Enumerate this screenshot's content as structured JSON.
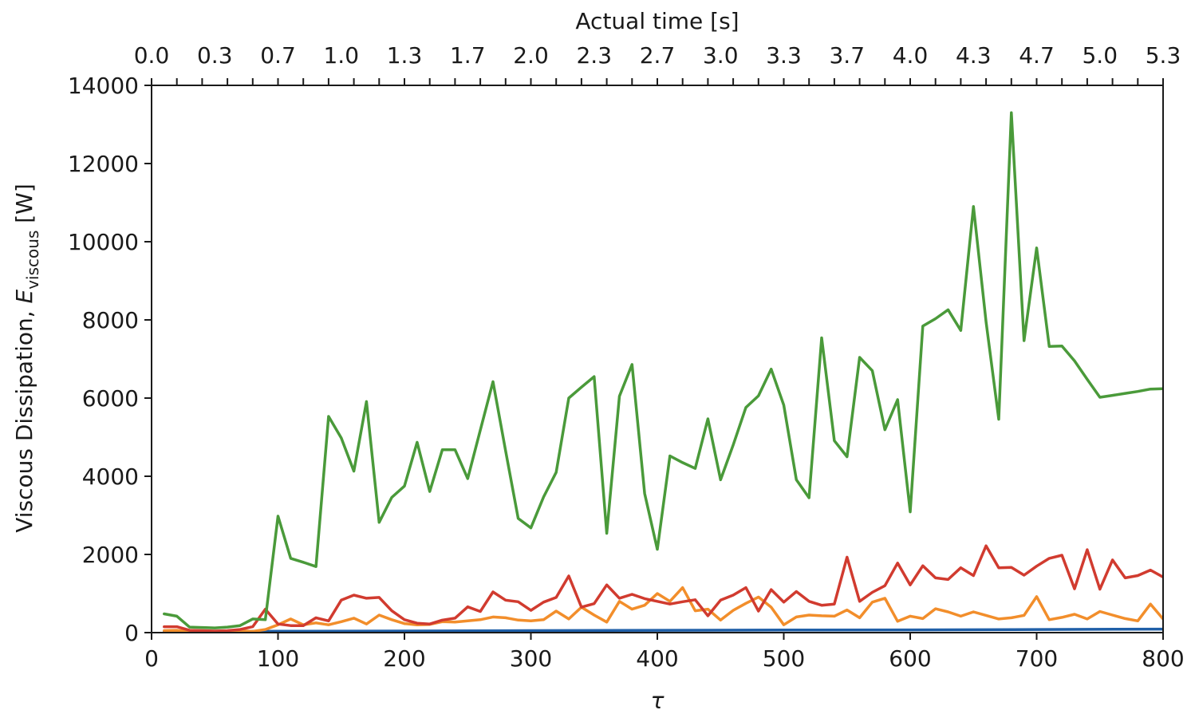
{
  "chart_data": {
    "type": "line",
    "xlabel": "τ",
    "ylabel": "Viscous Dissipation, E_viscous [W]",
    "ylabel_parts": {
      "pre": "Viscous Dissipation, ",
      "var": "E",
      "sub": "viscous",
      "post": " [W]"
    },
    "top_xlabel": "Actual time [s]",
    "xlim": [
      0,
      800
    ],
    "ylim": [
      0,
      14000
    ],
    "grid": false,
    "x_ticks": [
      0,
      100,
      200,
      300,
      400,
      500,
      600,
      700,
      800
    ],
    "y_ticks": [
      0,
      2000,
      4000,
      6000,
      8000,
      10000,
      12000,
      14000
    ],
    "top_ticks": {
      "positions": [
        0,
        20,
        40,
        60,
        80,
        100,
        120,
        140,
        160,
        180,
        200,
        220,
        240,
        260,
        280,
        300,
        320,
        340,
        360,
        380,
        400,
        420,
        440,
        460,
        480,
        500,
        520,
        540,
        560,
        580,
        600,
        620,
        640,
        660,
        680,
        700,
        720,
        740,
        760,
        780,
        800
      ],
      "labels": [
        {
          "x": 0,
          "text": "0.0"
        },
        {
          "x": 50,
          "text": "0.3"
        },
        {
          "x": 100,
          "text": "0.7"
        },
        {
          "x": 150,
          "text": "1.0"
        },
        {
          "x": 200,
          "text": "1.3"
        },
        {
          "x": 250,
          "text": "1.7"
        },
        {
          "x": 300,
          "text": "2.0"
        },
        {
          "x": 350,
          "text": "2.3"
        },
        {
          "x": 400,
          "text": "2.7"
        },
        {
          "x": 450,
          "text": "3.0"
        },
        {
          "x": 500,
          "text": "3.3"
        },
        {
          "x": 550,
          "text": "3.7"
        },
        {
          "x": 600,
          "text": "4.0"
        },
        {
          "x": 650,
          "text": "4.3"
        },
        {
          "x": 700,
          "text": "4.7"
        },
        {
          "x": 750,
          "text": "5.0"
        },
        {
          "x": 800,
          "text": "5.3"
        }
      ]
    },
    "series": [
      {
        "color": "#1f5fa8",
        "x": [
          10,
          50,
          100,
          200,
          300,
          400,
          500,
          600,
          700,
          800
        ],
        "y": [
          20,
          25,
          35,
          40,
          50,
          60,
          65,
          70,
          80,
          90
        ]
      },
      {
        "color": "#f28e2b",
        "x": [
          10,
          20,
          30,
          40,
          50,
          60,
          70,
          80,
          90,
          100,
          110,
          120,
          130,
          140,
          150,
          160,
          170,
          180,
          190,
          200,
          210,
          220,
          230,
          240,
          250,
          260,
          270,
          280,
          290,
          300,
          310,
          320,
          330,
          340,
          350,
          360,
          370,
          380,
          390,
          400,
          410,
          420,
          430,
          440,
          450,
          460,
          470,
          480,
          490,
          500,
          510,
          520,
          530,
          540,
          550,
          560,
          570,
          580,
          590,
          600,
          610,
          620,
          630,
          640,
          650,
          660,
          670,
          680,
          690,
          700,
          710,
          720,
          730,
          740,
          750,
          760,
          770,
          780,
          790,
          800
        ],
        "y": [
          50,
          60,
          20,
          20,
          30,
          40,
          50,
          30,
          80,
          200,
          350,
          200,
          250,
          200,
          280,
          370,
          220,
          450,
          330,
          230,
          200,
          210,
          280,
          270,
          300,
          330,
          400,
          380,
          320,
          300,
          330,
          550,
          350,
          650,
          450,
          270,
          800,
          600,
          700,
          1000,
          800,
          1150,
          560,
          600,
          320,
          570,
          750,
          910,
          650,
          200,
          400,
          450,
          430,
          420,
          580,
          380,
          780,
          880,
          290,
          420,
          360,
          610,
          530,
          420,
          530,
          440,
          350,
          380,
          440,
          920,
          330,
          390,
          470,
          350,
          540,
          450,
          360,
          300,
          730,
          350
        ]
      },
      {
        "color": "#d13b2f",
        "x": [
          10,
          20,
          30,
          40,
          50,
          60,
          70,
          80,
          90,
          100,
          110,
          120,
          130,
          140,
          150,
          160,
          170,
          180,
          190,
          200,
          210,
          220,
          230,
          240,
          250,
          260,
          270,
          280,
          290,
          300,
          310,
          320,
          330,
          340,
          350,
          360,
          370,
          380,
          390,
          400,
          410,
          420,
          430,
          440,
          450,
          460,
          470,
          480,
          490,
          500,
          510,
          520,
          530,
          540,
          550,
          560,
          570,
          580,
          590,
          600,
          610,
          620,
          630,
          640,
          650,
          660,
          670,
          680,
          690,
          700,
          710,
          720,
          730,
          740,
          750,
          760,
          770,
          780,
          790,
          800
        ],
        "y": [
          150,
          150,
          60,
          50,
          40,
          50,
          80,
          150,
          600,
          220,
          180,
          180,
          380,
          300,
          830,
          960,
          880,
          900,
          560,
          330,
          240,
          220,
          320,
          370,
          660,
          540,
          1040,
          830,
          790,
          570,
          780,
          900,
          1450,
          650,
          740,
          1220,
          880,
          980,
          870,
          800,
          730,
          790,
          840,
          430,
          830,
          960,
          1150,
          550,
          1100,
          780,
          1050,
          800,
          700,
          730,
          1930,
          800,
          1030,
          1200,
          1780,
          1220,
          1710,
          1400,
          1360,
          1660,
          1460,
          2220,
          1660,
          1670,
          1470,
          1700,
          1900,
          1980,
          1120,
          2120,
          1110,
          1860,
          1400,
          1460,
          1600,
          1420
        ]
      },
      {
        "color": "#4a9a3a",
        "x": [
          10,
          20,
          30,
          40,
          50,
          60,
          70,
          80,
          90,
          100,
          110,
          120,
          130,
          140,
          150,
          160,
          170,
          180,
          190,
          200,
          210,
          220,
          230,
          240,
          250,
          260,
          270,
          280,
          290,
          300,
          310,
          320,
          330,
          340,
          350,
          360,
          370,
          380,
          390,
          400,
          410,
          420,
          430,
          440,
          450,
          460,
          470,
          480,
          490,
          500,
          510,
          520,
          530,
          540,
          550,
          560,
          570,
          580,
          590,
          600,
          610,
          620,
          630,
          640,
          650,
          660,
          670,
          680,
          690,
          700,
          710,
          720,
          730,
          740,
          750,
          760,
          770,
          780,
          790,
          800
        ],
        "y": [
          480,
          420,
          140,
          130,
          120,
          140,
          180,
          350,
          330,
          2980,
          1900,
          1800,
          1690,
          5530,
          4980,
          4130,
          5910,
          2820,
          3460,
          3750,
          4870,
          3610,
          4680,
          4680,
          3940,
          5180,
          6420,
          4650,
          2920,
          2680,
          3470,
          4100,
          6000,
          6280,
          6550,
          2540,
          6050,
          6860,
          3560,
          2130,
          4520,
          4350,
          4200,
          5470,
          3910,
          4800,
          5760,
          6060,
          6740,
          5820,
          3910,
          3450,
          7540,
          4910,
          4500,
          7040,
          6700,
          5190,
          5960,
          3090,
          7840,
          8030,
          8260,
          7730,
          10900,
          7950,
          5460,
          13300,
          7470,
          9840,
          7320,
          7330,
          6950,
          6480,
          6020,
          6070,
          6120,
          6170,
          6230,
          6240
        ]
      }
    ]
  }
}
